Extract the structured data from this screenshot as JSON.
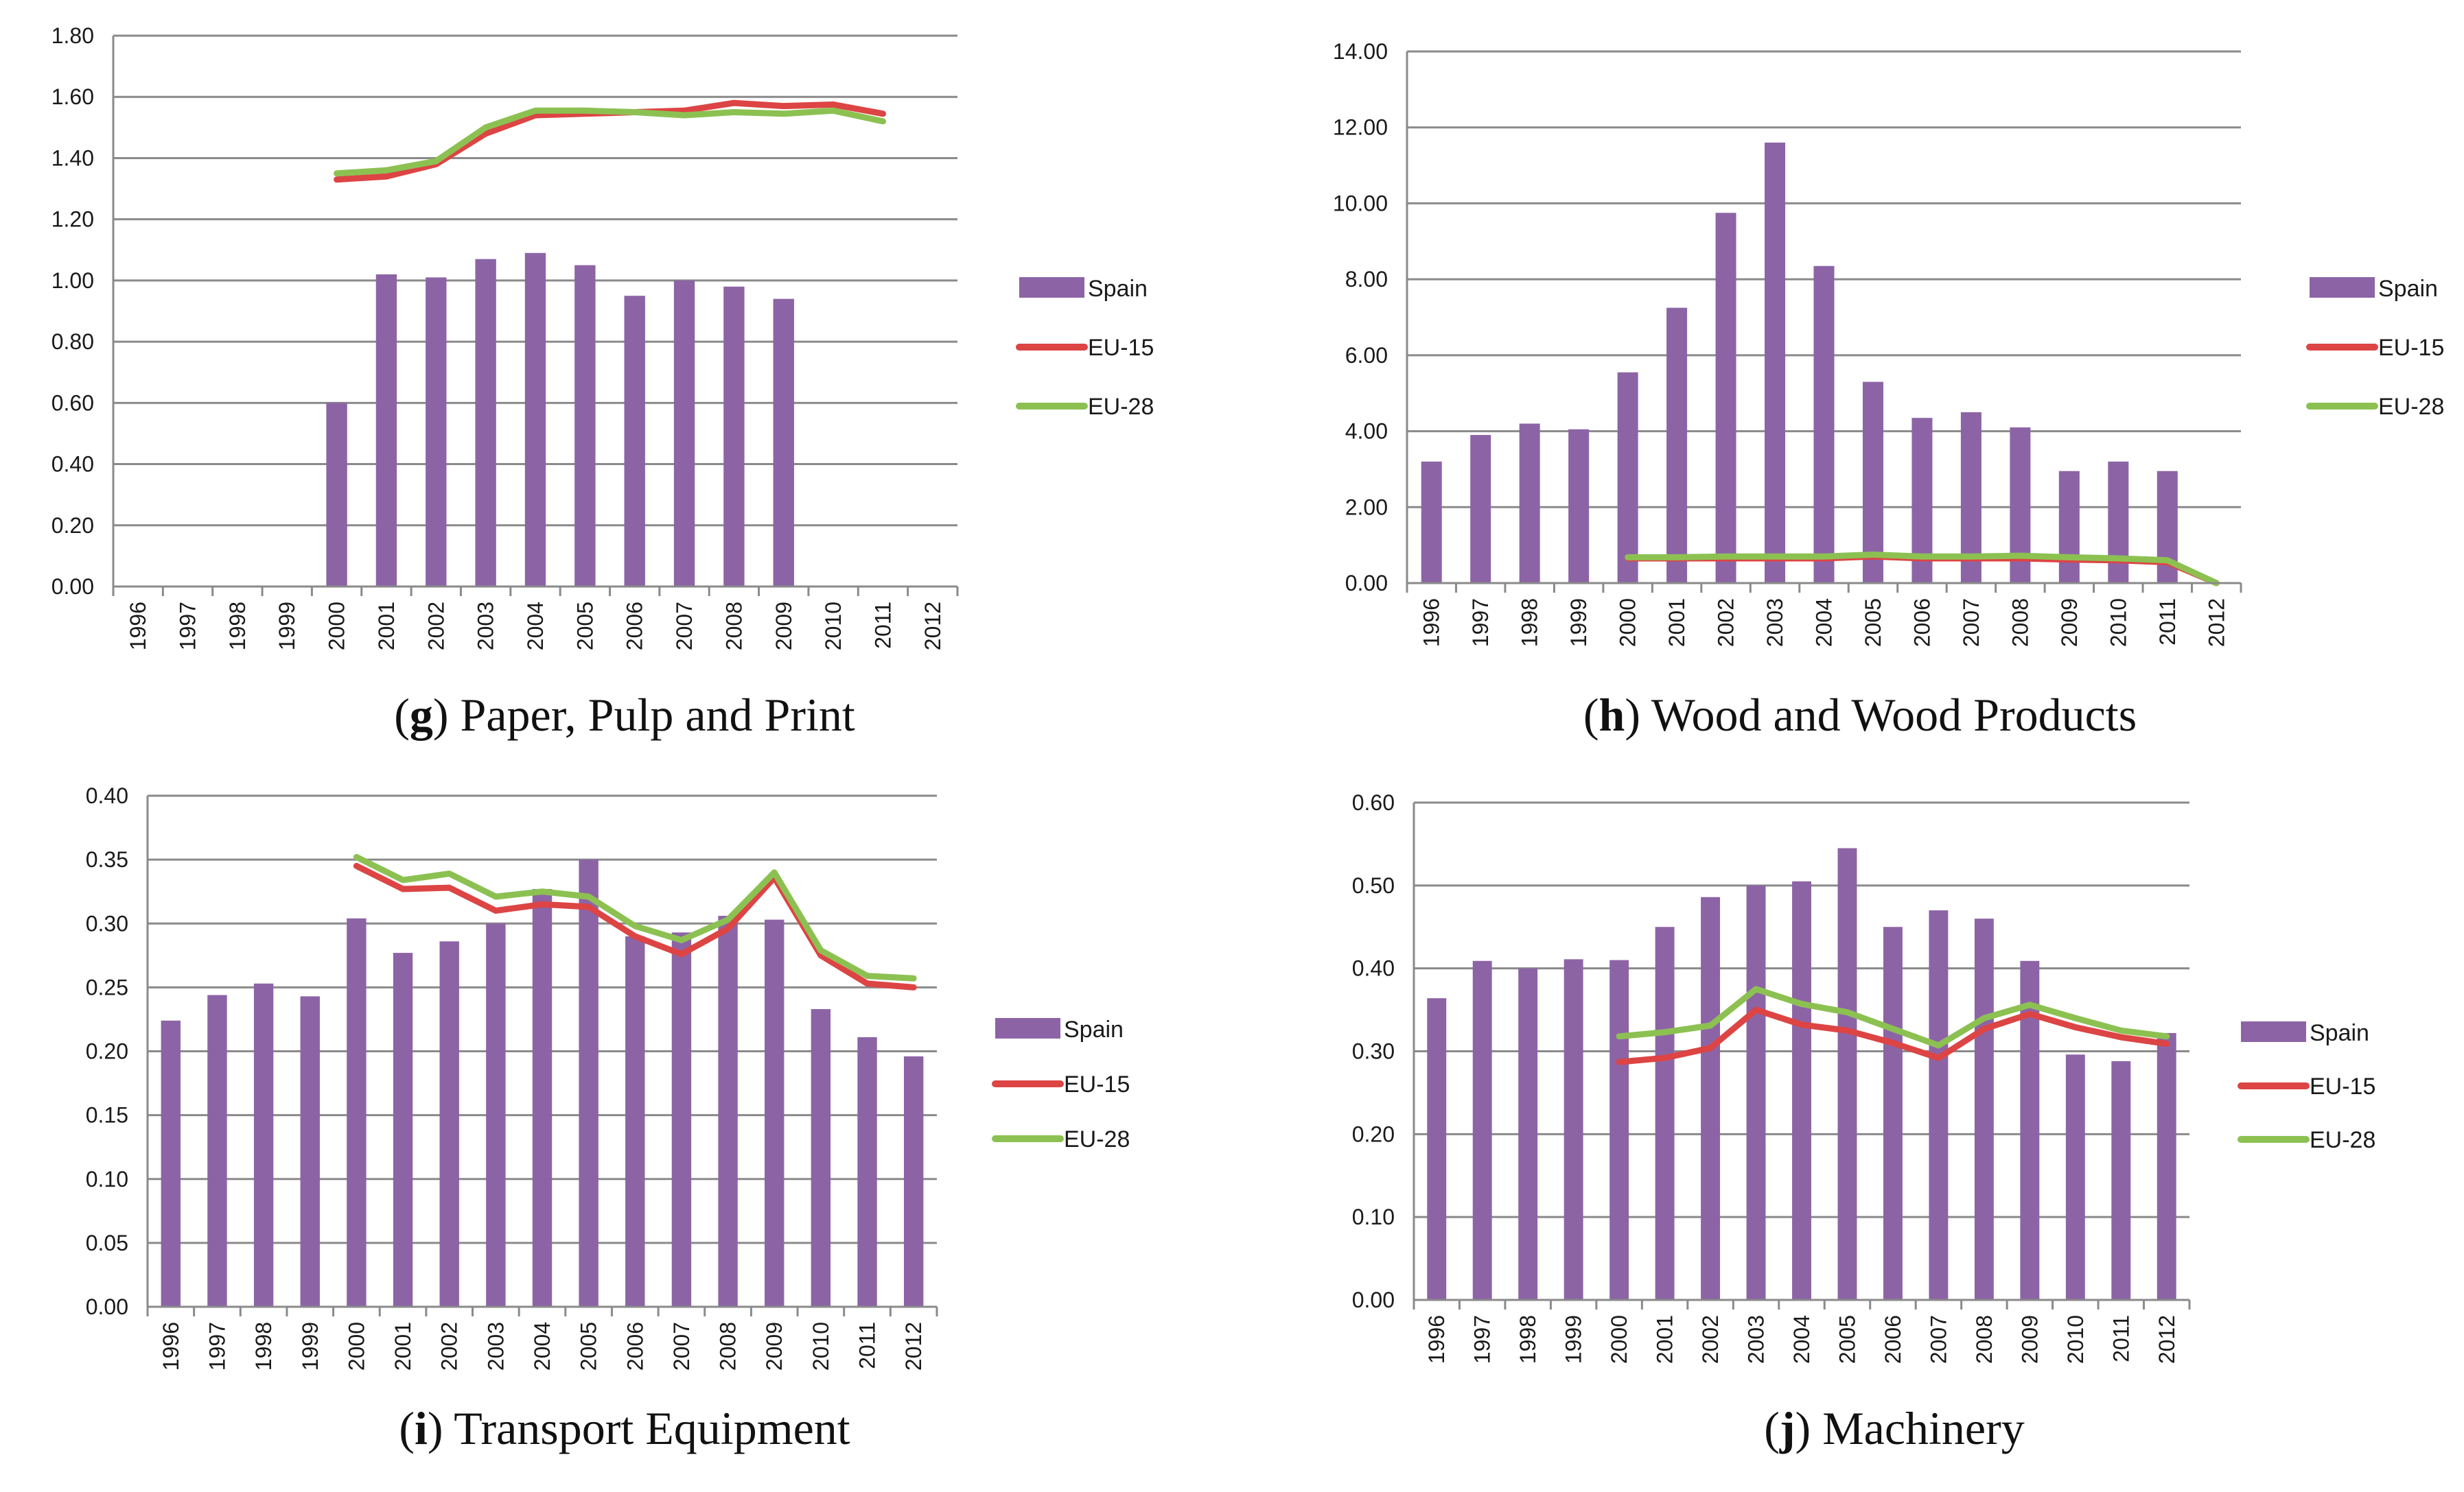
{
  "colors": {
    "spain": "#8c64a6",
    "eu15": "#dd4444",
    "eu28": "#8cc152"
  },
  "chart_data": [
    {
      "type": "bar",
      "caption_letter": "g",
      "caption_title": "Paper, Pulp and Print",
      "categories": [
        "1996",
        "1997",
        "1998",
        "1999",
        "2000",
        "2001",
        "2002",
        "2003",
        "2004",
        "2005",
        "2006",
        "2007",
        "2008",
        "2009",
        "2010",
        "2011",
        "2012"
      ],
      "yticks": [
        "0.00",
        "0.20",
        "0.40",
        "0.60",
        "0.80",
        "1.00",
        "1.20",
        "1.40",
        "1.60",
        "1.80"
      ],
      "ylim": [
        0,
        1.8
      ],
      "legend": [
        "Spain",
        "EU-15",
        "EU-28"
      ],
      "series": [
        {
          "name": "Spain",
          "kind": "bar",
          "values": [
            null,
            null,
            null,
            null,
            0.6,
            1.02,
            1.01,
            1.07,
            1.09,
            1.05,
            0.95,
            1.0,
            0.98,
            0.94,
            null,
            null,
            null
          ]
        },
        {
          "name": "EU-15",
          "kind": "line",
          "values": [
            null,
            null,
            null,
            null,
            1.33,
            1.34,
            1.38,
            1.48,
            1.54,
            1.545,
            1.55,
            1.555,
            1.58,
            1.57,
            1.575,
            1.545,
            null
          ]
        },
        {
          "name": "EU-28",
          "kind": "line",
          "values": [
            null,
            null,
            null,
            null,
            1.35,
            1.36,
            1.39,
            1.5,
            1.555,
            1.555,
            1.55,
            1.54,
            1.55,
            1.545,
            1.555,
            1.52,
            null
          ]
        }
      ]
    },
    {
      "type": "bar",
      "caption_letter": "h",
      "caption_title": "Wood and Wood Products",
      "categories": [
        "1996",
        "1997",
        "1998",
        "1999",
        "2000",
        "2001",
        "2002",
        "2003",
        "2004",
        "2005",
        "2006",
        "2007",
        "2008",
        "2009",
        "2010",
        "2011",
        "2012"
      ],
      "yticks": [
        "0.00",
        "2.00",
        "4.00",
        "6.00",
        "8.00",
        "10.00",
        "12.00",
        "14.00"
      ],
      "ylim": [
        0,
        14
      ],
      "legend": [
        "Spain",
        "EU-15",
        "EU-28"
      ],
      "series": [
        {
          "name": "Spain",
          "kind": "bar",
          "values": [
            3.2,
            3.9,
            4.2,
            4.05,
            5.55,
            7.25,
            9.75,
            11.6,
            8.35,
            5.3,
            4.35,
            4.5,
            4.1,
            2.95,
            3.2,
            2.95,
            null
          ]
        },
        {
          "name": "EU-15",
          "kind": "line",
          "values": [
            null,
            null,
            null,
            null,
            0.65,
            0.65,
            0.65,
            0.65,
            0.65,
            0.7,
            0.65,
            0.65,
            0.65,
            0.62,
            0.6,
            0.55,
            0.0
          ]
        },
        {
          "name": "EU-28",
          "kind": "line",
          "values": [
            null,
            null,
            null,
            null,
            0.68,
            0.68,
            0.7,
            0.7,
            0.7,
            0.75,
            0.7,
            0.7,
            0.72,
            0.68,
            0.65,
            0.6,
            0.0
          ]
        }
      ]
    },
    {
      "type": "bar",
      "caption_letter": "i",
      "caption_title": "Transport Equipment",
      "categories": [
        "1996",
        "1997",
        "1998",
        "1999",
        "2000",
        "2001",
        "2002",
        "2003",
        "2004",
        "2005",
        "2006",
        "2007",
        "2008",
        "2009",
        "2010",
        "2011",
        "2012"
      ],
      "yticks": [
        "0.00",
        "0.05",
        "0.10",
        "0.15",
        "0.20",
        "0.25",
        "0.30",
        "0.35",
        "0.40"
      ],
      "ylim": [
        0,
        0.4
      ],
      "legend": [
        "Spain",
        "EU-15",
        "EU-28"
      ],
      "series": [
        {
          "name": "Spain",
          "kind": "bar",
          "values": [
            0.224,
            0.244,
            0.253,
            0.243,
            0.304,
            0.277,
            0.286,
            0.3,
            0.327,
            0.35,
            0.29,
            0.293,
            0.306,
            0.303,
            0.233,
            0.211,
            0.196
          ]
        },
        {
          "name": "EU-15",
          "kind": "line",
          "values": [
            null,
            null,
            null,
            null,
            0.345,
            0.327,
            0.328,
            0.31,
            0.315,
            0.313,
            0.29,
            0.276,
            0.296,
            0.336,
            0.275,
            0.253,
            0.25
          ]
        },
        {
          "name": "EU-28",
          "kind": "line",
          "values": [
            null,
            null,
            null,
            null,
            0.352,
            0.334,
            0.339,
            0.321,
            0.325,
            0.321,
            0.298,
            0.287,
            0.303,
            0.34,
            0.279,
            0.259,
            0.257
          ]
        }
      ]
    },
    {
      "type": "bar",
      "caption_letter": "j",
      "caption_title": "Machinery",
      "categories": [
        "1996",
        "1997",
        "1998",
        "1999",
        "2000",
        "2001",
        "2002",
        "2003",
        "2004",
        "2005",
        "2006",
        "2007",
        "2008",
        "2009",
        "2010",
        "2011",
        "2012"
      ],
      "yticks": [
        "0.00",
        "0.10",
        "0.20",
        "0.30",
        "0.40",
        "0.50",
        "0.60"
      ],
      "ylim": [
        0,
        0.6
      ],
      "legend": [
        "Spain",
        "EU-15",
        "EU-28"
      ],
      "series": [
        {
          "name": "Spain",
          "kind": "bar",
          "values": [
            0.364,
            0.409,
            0.4,
            0.411,
            0.41,
            0.45,
            0.486,
            0.5,
            0.505,
            0.545,
            0.45,
            0.47,
            0.46,
            0.409,
            0.296,
            0.288,
            0.322
          ]
        },
        {
          "name": "EU-15",
          "kind": "line",
          "values": [
            null,
            null,
            null,
            null,
            0.287,
            0.292,
            0.304,
            0.35,
            0.332,
            0.325,
            0.31,
            0.292,
            0.327,
            0.345,
            0.329,
            0.317,
            0.309
          ]
        },
        {
          "name": "EU-28",
          "kind": "line",
          "values": [
            null,
            null,
            null,
            null,
            0.318,
            0.323,
            0.331,
            0.375,
            0.357,
            0.347,
            0.327,
            0.307,
            0.34,
            0.356,
            0.34,
            0.325,
            0.318
          ]
        }
      ]
    }
  ]
}
